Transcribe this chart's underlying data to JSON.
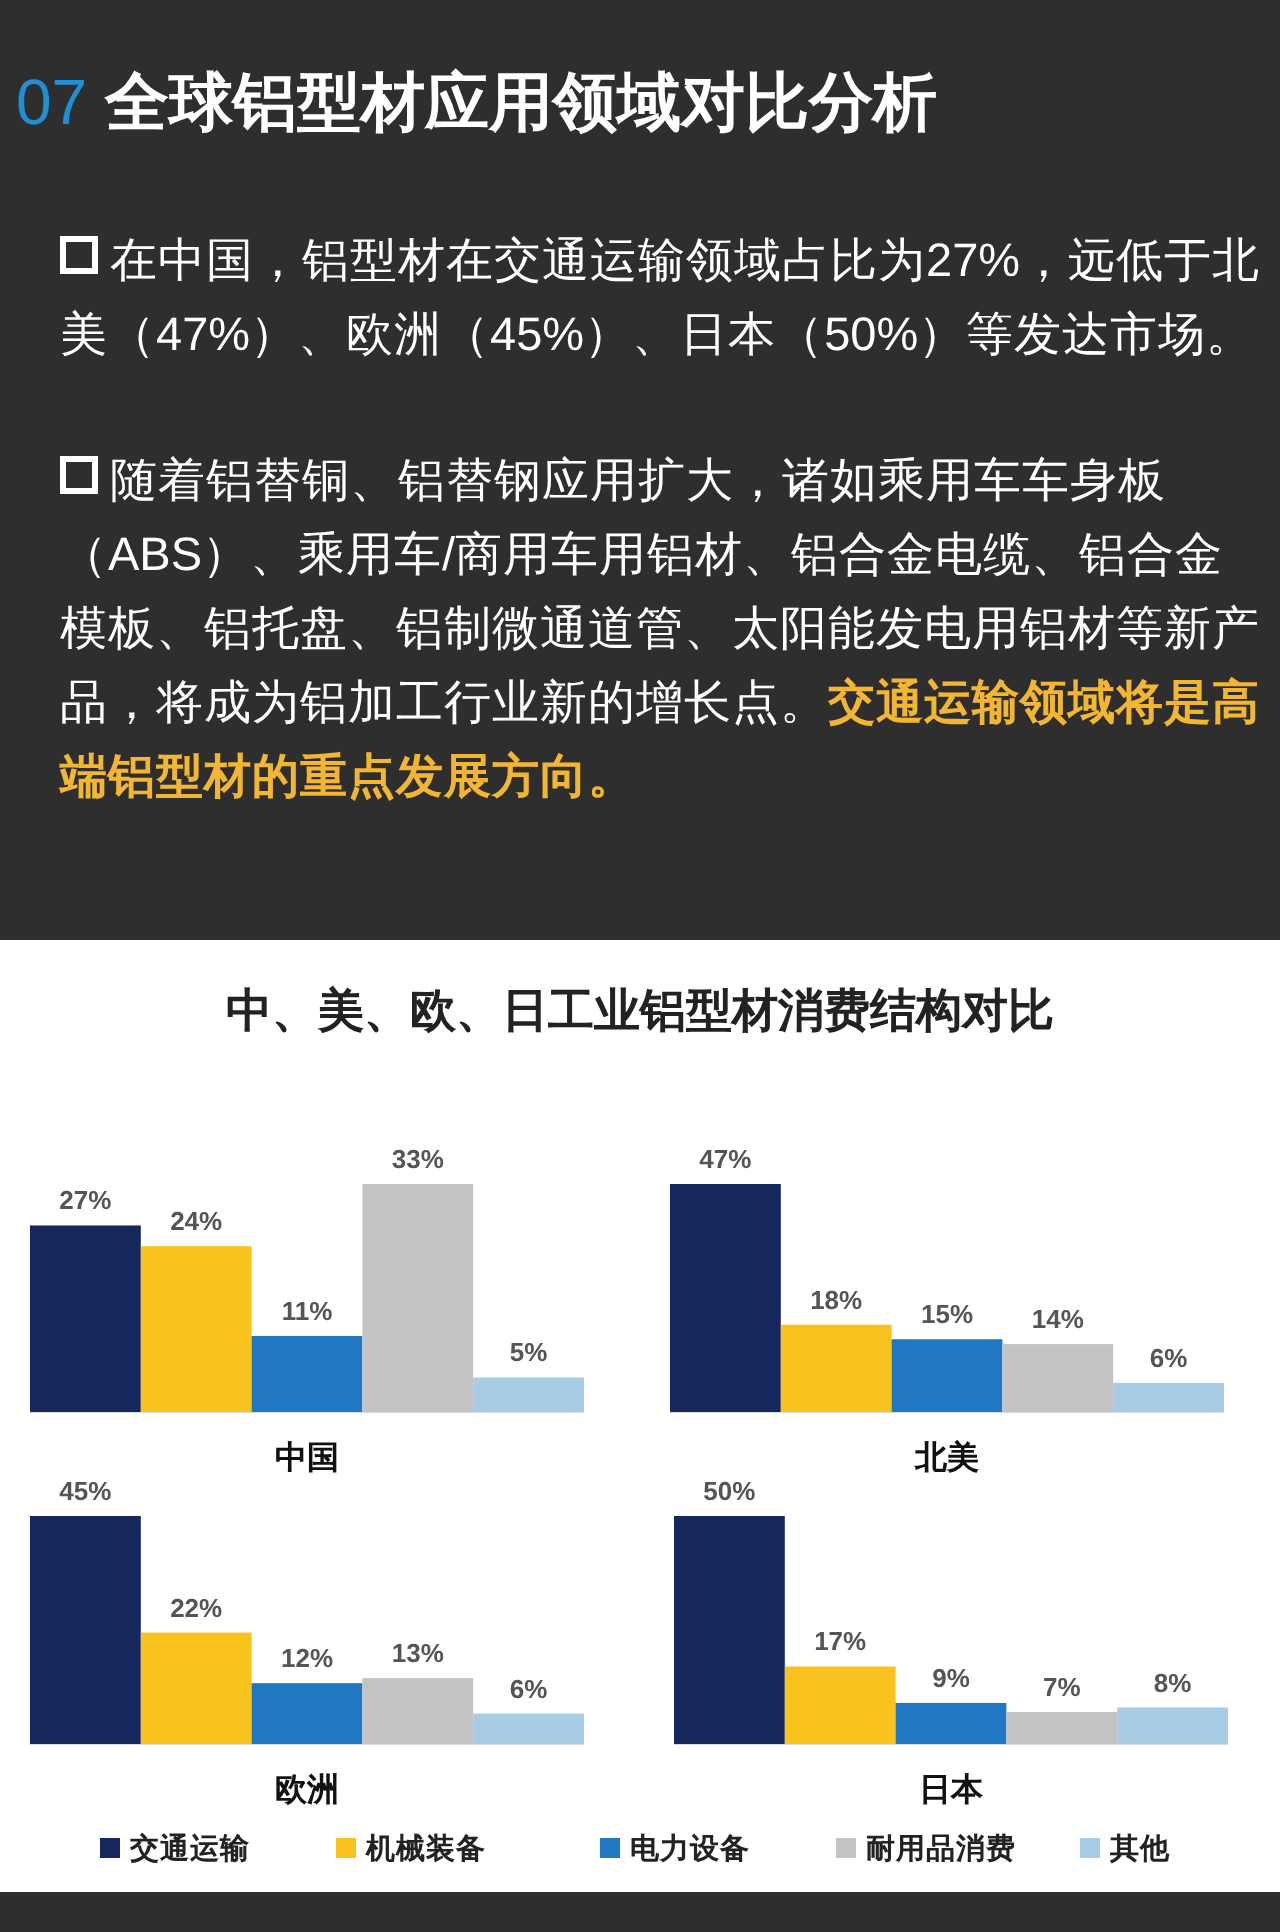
{
  "chart_data": [
    {
      "type": "other",
      "title": "07 全球铝型材应用领域对比分析",
      "annotations": [
        "在中国，铝型材在交通运输领域占比为27%，远低于北美（47%）、欧洲（45%）、日本（50%）等发达市场。",
        "随着铝替铜、铝替钢应用扩大，诸如乘用车车身板（ABS）、乘用车/商用车用铝材、铝合金电缆、铝合金模板、铝托盘、铝制微通道管、太阳能发电用铝材等新产品，将成为铝加工行业新的增长点。",
        "交通运输领域将是高端铝型材的重点发展方向。",
        "中、美、欧、日工业铝型材消费结构对比"
      ]
    },
    {
      "type": "bar",
      "xlabel": "中国",
      "legend": "bottom",
      "categories": [
        null
      ],
      "series": [
        {
          "name": "交通运输",
          "color": "#16275c",
          "values": [
            27
          ],
          "value_labels": [
            "27%"
          ]
        },
        {
          "name": "机械装备",
          "color": "#f7c31c",
          "values": [
            24
          ],
          "value_labels": [
            "24%"
          ]
        },
        {
          "name": "电力设备",
          "color": "#1f78c1",
          "values": [
            11
          ],
          "value_labels": [
            "11%"
          ]
        },
        {
          "name": "耐用品消费",
          "color": "#c3c3c3",
          "values": [
            33
          ],
          "value_labels": [
            "33%"
          ]
        },
        {
          "name": "其他",
          "color": "#a8cbe6",
          "values": [
            5
          ],
          "value_labels": [
            "5%"
          ]
        }
      ]
    },
    {
      "type": "bar",
      "xlabel": "北美",
      "categories": [
        null
      ],
      "series": [
        {
          "color": "#16275c",
          "values": [
            47
          ],
          "value_labels": [
            "47%"
          ]
        },
        {
          "color": "#f7c31c",
          "values": [
            18
          ],
          "value_labels": [
            "18%"
          ]
        },
        {
          "color": "#1f78c1",
          "values": [
            15
          ],
          "value_labels": [
            "15%"
          ]
        },
        {
          "color": "#c3c3c3",
          "values": [
            14
          ],
          "value_labels": [
            "14%"
          ]
        },
        {
          "color": "#a8cbe6",
          "values": [
            6
          ],
          "value_labels": [
            "6%"
          ]
        }
      ]
    },
    {
      "type": "bar",
      "xlabel": "欧洲",
      "categories": [
        null
      ],
      "series": [
        {
          "color": "#16275c",
          "values": [
            45
          ],
          "value_labels": [
            "45%"
          ]
        },
        {
          "color": "#f7c31c",
          "values": [
            22
          ],
          "value_labels": [
            "22%"
          ]
        },
        {
          "color": "#1f78c1",
          "values": [
            12
          ],
          "value_labels": [
            "12%"
          ]
        },
        {
          "color": "#c3c3c3",
          "values": [
            13
          ],
          "value_labels": [
            "13%"
          ]
        },
        {
          "color": "#a8cbe6",
          "values": [
            6
          ],
          "value_labels": [
            "6%"
          ]
        }
      ]
    },
    {
      "type": "bar",
      "xlabel": "日本",
      "categories": [
        null
      ],
      "series": [
        {
          "color": "#16275c",
          "values": [
            50
          ],
          "value_labels": [
            "50%"
          ]
        },
        {
          "color": "#f7c31c",
          "values": [
            17
          ],
          "value_labels": [
            "17%"
          ]
        },
        {
          "color": "#1f78c1",
          "values": [
            9
          ],
          "value_labels": [
            "9%"
          ]
        },
        {
          "color": "#c3c3c3",
          "values": [
            7
          ],
          "value_labels": [
            "7%"
          ]
        },
        {
          "color": "#a8cbe6",
          "values": [
            8
          ],
          "value_labels": [
            "8%"
          ]
        }
      ]
    }
  ]
}
